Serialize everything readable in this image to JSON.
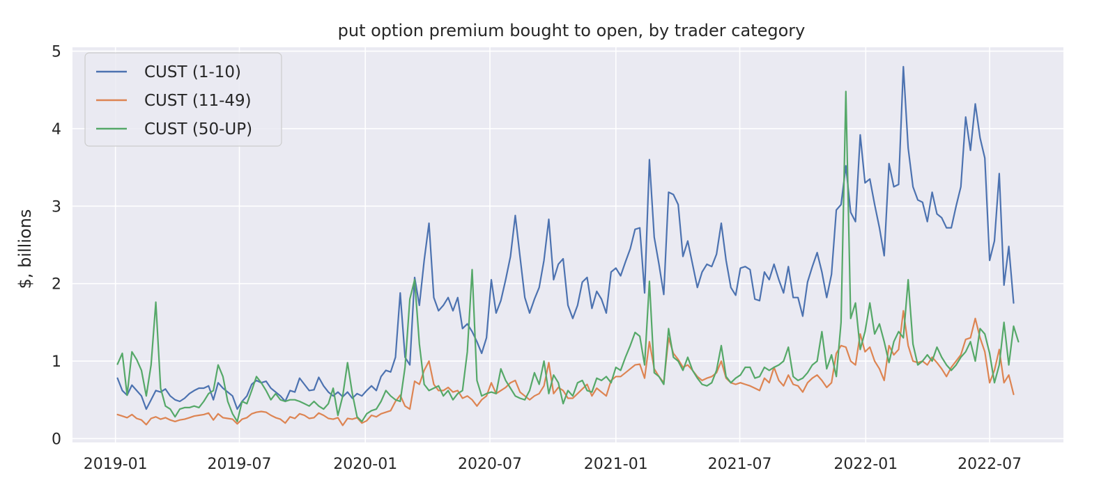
{
  "chart_data": {
    "type": "line",
    "title": "put option premium bought to open, by trader category",
    "xlabel": "",
    "ylabel": "$, billions",
    "ylim": [
      -0.05,
      5.05
    ],
    "y_ticks": [
      0,
      1,
      2,
      3,
      4,
      5
    ],
    "x_ticks": [
      "2019-01",
      "2019-07",
      "2020-01",
      "2020-07",
      "2021-01",
      "2021-07",
      "2022-01",
      "2022-07"
    ],
    "grid": true,
    "legend_position": "top-left",
    "x_start": "2019-01-04",
    "x_interval": "weekly",
    "colors": {
      "background": "#eaeaf2",
      "grid": "#ffffff"
    },
    "series": [
      {
        "name": "CUST (1-10)",
        "color": "#4c72b0",
        "values": [
          0.78,
          0.62,
          0.56,
          0.69,
          0.62,
          0.55,
          0.38,
          0.5,
          0.62,
          0.6,
          0.64,
          0.55,
          0.5,
          0.48,
          0.52,
          0.58,
          0.62,
          0.65,
          0.65,
          0.68,
          0.5,
          0.72,
          0.65,
          0.6,
          0.55,
          0.38,
          0.48,
          0.55,
          0.7,
          0.75,
          0.72,
          0.74,
          0.65,
          0.6,
          0.55,
          0.48,
          0.62,
          0.6,
          0.78,
          0.7,
          0.62,
          0.63,
          0.79,
          0.68,
          0.6,
          0.55,
          0.6,
          0.54,
          0.6,
          0.52,
          0.58,
          0.55,
          0.62,
          0.68,
          0.62,
          0.8,
          0.88,
          0.86,
          1.05,
          1.88,
          1.05,
          0.95,
          2.08,
          1.72,
          2.3,
          2.78,
          1.82,
          1.65,
          1.72,
          1.82,
          1.65,
          1.82,
          1.42,
          1.48,
          1.38,
          1.25,
          1.1,
          1.3,
          2.05,
          1.62,
          1.78,
          2.05,
          2.35,
          2.88,
          2.35,
          1.82,
          1.62,
          1.8,
          1.95,
          2.3,
          2.83,
          2.05,
          2.25,
          2.32,
          1.72,
          1.55,
          1.72,
          2.02,
          2.08,
          1.68,
          1.9,
          1.8,
          1.62,
          2.15,
          2.2,
          2.1,
          2.28,
          2.45,
          2.7,
          2.72,
          1.88,
          3.6,
          2.6,
          2.25,
          1.86,
          3.18,
          3.15,
          3.02,
          2.35,
          2.55,
          2.25,
          1.95,
          2.15,
          2.25,
          2.22,
          2.38,
          2.78,
          2.3,
          1.95,
          1.85,
          2.2,
          2.22,
          2.18,
          1.8,
          1.78,
          2.15,
          2.05,
          2.25,
          2.05,
          1.88,
          2.22,
          1.82,
          1.82,
          1.58,
          2.02,
          2.22,
          2.4,
          2.15,
          1.82,
          2.12,
          2.95,
          3.02,
          3.52,
          2.92,
          2.8,
          3.92,
          3.3,
          3.35,
          3.02,
          2.72,
          2.36,
          3.55,
          3.25,
          3.28,
          4.8,
          3.75,
          3.25,
          3.08,
          3.05,
          2.8,
          3.18,
          2.9,
          2.85,
          2.72,
          2.72,
          3.0,
          3.25,
          4.15,
          3.72,
          4.32,
          3.88,
          3.62,
          2.3,
          2.55,
          3.42,
          1.98,
          2.48,
          1.75
        ]
      },
      {
        "name": "CUST (11-49)",
        "color": "#dd8452",
        "values": [
          0.31,
          0.29,
          0.27,
          0.31,
          0.26,
          0.24,
          0.18,
          0.26,
          0.28,
          0.25,
          0.27,
          0.24,
          0.22,
          0.24,
          0.25,
          0.27,
          0.29,
          0.3,
          0.31,
          0.33,
          0.24,
          0.32,
          0.27,
          0.26,
          0.25,
          0.19,
          0.25,
          0.27,
          0.32,
          0.34,
          0.35,
          0.34,
          0.3,
          0.27,
          0.25,
          0.2,
          0.28,
          0.26,
          0.32,
          0.3,
          0.26,
          0.27,
          0.33,
          0.3,
          0.26,
          0.25,
          0.27,
          0.17,
          0.26,
          0.25,
          0.27,
          0.2,
          0.23,
          0.3,
          0.28,
          0.32,
          0.34,
          0.36,
          0.48,
          0.56,
          0.42,
          0.38,
          0.74,
          0.7,
          0.88,
          1.0,
          0.7,
          0.62,
          0.62,
          0.66,
          0.6,
          0.62,
          0.52,
          0.55,
          0.5,
          0.42,
          0.5,
          0.55,
          0.72,
          0.58,
          0.62,
          0.66,
          0.72,
          0.75,
          0.6,
          0.55,
          0.5,
          0.55,
          0.58,
          0.68,
          0.98,
          0.58,
          0.66,
          0.62,
          0.52,
          0.52,
          0.58,
          0.64,
          0.7,
          0.55,
          0.65,
          0.6,
          0.55,
          0.75,
          0.8,
          0.8,
          0.85,
          0.9,
          0.95,
          0.96,
          0.78,
          1.25,
          0.9,
          0.8,
          0.72,
          1.3,
          1.1,
          1.02,
          0.92,
          0.95,
          0.88,
          0.8,
          0.75,
          0.78,
          0.8,
          0.85,
          1.0,
          0.78,
          0.72,
          0.7,
          0.72,
          0.7,
          0.68,
          0.65,
          0.62,
          0.78,
          0.72,
          0.92,
          0.75,
          0.68,
          0.82,
          0.7,
          0.68,
          0.6,
          0.72,
          0.78,
          0.82,
          0.75,
          0.66,
          0.72,
          1.1,
          1.2,
          1.18,
          1.0,
          0.95,
          1.35,
          1.12,
          1.18,
          1.0,
          0.9,
          0.75,
          1.2,
          1.08,
          1.15,
          1.65,
          1.2,
          1.0,
          0.98,
          1.0,
          0.95,
          1.05,
          0.98,
          0.9,
          0.8,
          0.92,
          1.0,
          1.08,
          1.28,
          1.3,
          1.55,
          1.3,
          1.12,
          0.72,
          0.88,
          1.15,
          0.72,
          0.82,
          0.57
        ]
      },
      {
        "name": "CUST (50-UP)",
        "color": "#55a868",
        "values": [
          0.96,
          1.1,
          0.56,
          1.12,
          1.02,
          0.88,
          0.55,
          0.95,
          1.76,
          0.65,
          0.42,
          0.38,
          0.28,
          0.38,
          0.4,
          0.4,
          0.42,
          0.4,
          0.48,
          0.58,
          0.62,
          0.95,
          0.8,
          0.48,
          0.32,
          0.22,
          0.48,
          0.45,
          0.62,
          0.8,
          0.72,
          0.62,
          0.5,
          0.58,
          0.5,
          0.48,
          0.5,
          0.5,
          0.48,
          0.45,
          0.42,
          0.48,
          0.42,
          0.38,
          0.45,
          0.65,
          0.3,
          0.55,
          0.98,
          0.58,
          0.28,
          0.22,
          0.32,
          0.36,
          0.38,
          0.48,
          0.62,
          0.55,
          0.5,
          0.48,
          0.92,
          1.8,
          2.05,
          1.22,
          0.7,
          0.62,
          0.65,
          0.68,
          0.55,
          0.62,
          0.5,
          0.58,
          0.62,
          1.12,
          2.18,
          0.75,
          0.55,
          0.58,
          0.6,
          0.58,
          0.9,
          0.75,
          0.65,
          0.55,
          0.52,
          0.5,
          0.62,
          0.85,
          0.7,
          1.0,
          0.58,
          0.82,
          0.72,
          0.45,
          0.62,
          0.55,
          0.72,
          0.75,
          0.62,
          0.6,
          0.78,
          0.75,
          0.8,
          0.72,
          0.92,
          0.88,
          1.05,
          1.2,
          1.37,
          1.32,
          0.95,
          2.03,
          0.85,
          0.8,
          0.7,
          1.42,
          1.05,
          1.0,
          0.88,
          1.05,
          0.88,
          0.78,
          0.7,
          0.68,
          0.72,
          0.88,
          1.2,
          0.8,
          0.72,
          0.78,
          0.82,
          0.92,
          0.92,
          0.78,
          0.8,
          0.92,
          0.88,
          0.92,
          0.95,
          1.0,
          1.18,
          0.8,
          0.75,
          0.78,
          0.85,
          0.95,
          1.0,
          1.38,
          0.9,
          1.08,
          0.8,
          1.5,
          4.48,
          1.55,
          1.75,
          1.15,
          1.38,
          1.75,
          1.35,
          1.48,
          1.25,
          0.98,
          1.25,
          1.38,
          1.3,
          2.05,
          1.22,
          0.95,
          1.0,
          1.08,
          1.0,
          1.18,
          1.05,
          0.95,
          0.88,
          0.95,
          1.05,
          1.12,
          1.25,
          1.0,
          1.42,
          1.35,
          1.1,
          0.72,
          0.95,
          1.5,
          0.95,
          1.45,
          1.25
        ]
      }
    ]
  }
}
